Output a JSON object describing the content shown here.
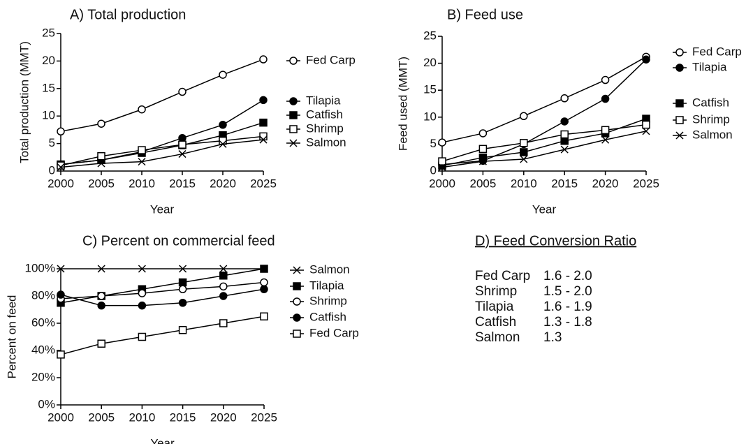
{
  "chart_data": [
    {
      "type": "line",
      "title": "A) Total production",
      "xlabel": "Year",
      "ylabel": "Total production (MMT)",
      "x": [
        2000,
        2005,
        2010,
        2015,
        2020,
        2025
      ],
      "xlim": [
        2000,
        2025
      ],
      "xticks": [
        2000,
        2005,
        2010,
        2015,
        2020,
        2025
      ],
      "ylim": [
        0,
        25
      ],
      "yticks": [
        0,
        5,
        10,
        15,
        20,
        25
      ],
      "series": [
        {
          "name": "Fed Carp",
          "color": "#000000",
          "marker": "circle-open",
          "values": [
            7.2,
            8.6,
            11.2,
            14.4,
            17.5,
            20.3
          ]
        },
        {
          "name": "Tilapia",
          "color": "#000000",
          "marker": "circle-filled",
          "values": [
            1.2,
            2.0,
            3.5,
            6.0,
            8.4,
            12.9
          ]
        },
        {
          "name": "Catfish",
          "color": "#000000",
          "marker": "square-filled",
          "values": [
            1.2,
            2.0,
            3.3,
            4.7,
            6.5,
            8.8
          ]
        },
        {
          "name": "Shrimp",
          "color": "#000000",
          "marker": "square-open",
          "values": [
            1.0,
            2.7,
            3.8,
            4.8,
            5.5,
            6.3
          ]
        },
        {
          "name": "Salmon",
          "color": "#000000",
          "marker": "cross",
          "values": [
            0.7,
            1.4,
            1.7,
            3.1,
            4.9,
            5.7
          ]
        }
      ]
    },
    {
      "type": "line",
      "title": "B) Feed use",
      "xlabel": "Year",
      "ylabel": "Feed used (MMT)",
      "x": [
        2000,
        2005,
        2010,
        2015,
        2020,
        2025
      ],
      "xlim": [
        2000,
        2025
      ],
      "xticks": [
        2000,
        2005,
        2010,
        2015,
        2020,
        2025
      ],
      "ylim": [
        0,
        25
      ],
      "yticks": [
        0,
        5,
        10,
        15,
        20,
        25
      ],
      "series": [
        {
          "name": "Fed Carp",
          "color": "#000000",
          "marker": "circle-open",
          "values": [
            5.3,
            7.0,
            10.2,
            13.5,
            16.9,
            21.2
          ]
        },
        {
          "name": "Tilapia",
          "color": "#000000",
          "marker": "circle-filled",
          "values": [
            1.2,
            1.9,
            5.0,
            9.2,
            13.4,
            20.7
          ]
        },
        {
          "name": "Catfish",
          "color": "#000000",
          "marker": "square-filled",
          "values": [
            1.0,
            2.5,
            3.5,
            5.6,
            7.0,
            9.7
          ]
        },
        {
          "name": "Shrimp",
          "color": "#000000",
          "marker": "square-open",
          "values": [
            1.8,
            4.1,
            5.2,
            6.8,
            7.6,
            8.6
          ]
        },
        {
          "name": "Salmon",
          "color": "#000000",
          "marker": "cross",
          "values": [
            0.7,
            1.8,
            2.2,
            4.0,
            5.8,
            7.4
          ]
        }
      ]
    },
    {
      "type": "line",
      "title": "C) Percent on commercial feed",
      "xlabel": "Year",
      "ylabel": "Percent on feed",
      "x": [
        2000,
        2005,
        2010,
        2015,
        2020,
        2025
      ],
      "xlim": [
        2000,
        2025
      ],
      "xticks": [
        2000,
        2005,
        2010,
        2015,
        2020,
        2025
      ],
      "ylim": [
        0,
        100
      ],
      "yticks": [
        {
          "value": 0,
          "label": "0%"
        },
        {
          "value": 20,
          "label": "20%"
        },
        {
          "value": 40,
          "label": "40%"
        },
        {
          "value": 60,
          "label": "60%"
        },
        {
          "value": 80,
          "label": "80%"
        },
        {
          "value": 100,
          "label": "100%"
        }
      ],
      "series": [
        {
          "name": "Salmon",
          "color": "#000000",
          "marker": "cross",
          "values": [
            100,
            100,
            100,
            100,
            100,
            100
          ]
        },
        {
          "name": "Tilapia",
          "color": "#000000",
          "marker": "square-filled",
          "values": [
            75,
            80,
            85,
            90,
            95,
            100
          ]
        },
        {
          "name": "Shrimp",
          "color": "#000000",
          "marker": "circle-open",
          "values": [
            78,
            80,
            82,
            85,
            87,
            90
          ]
        },
        {
          "name": "Catfish",
          "color": "#000000",
          "marker": "circle-filled",
          "values": [
            81,
            73,
            73,
            75,
            80,
            85
          ]
        },
        {
          "name": "Fed Carp",
          "color": "#000000",
          "marker": "square-open",
          "values": [
            37,
            45,
            50,
            55,
            60,
            65
          ]
        }
      ]
    },
    {
      "type": "table",
      "title": "D) Feed Conversion Ratio",
      "rows": [
        [
          "Fed Carp",
          "1.6 - 2.0"
        ],
        [
          "Shrimp",
          "1.5 - 2.0"
        ],
        [
          "Tilapia",
          "1.6 - 1.9"
        ],
        [
          "Catfish",
          "1.3 - 1.8"
        ],
        [
          "Salmon",
          "1.3"
        ]
      ]
    }
  ]
}
